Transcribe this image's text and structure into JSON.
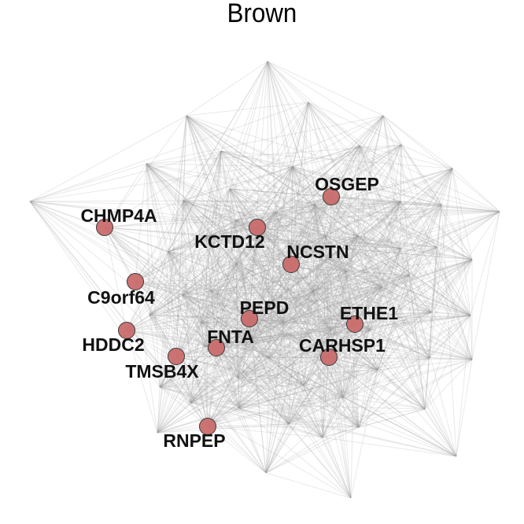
{
  "title": "Brown",
  "colors": {
    "background": "#ffffff",
    "node_fill": "#c96b6b",
    "node_stroke": "#3a3a3a",
    "edge": "#9a9a9a",
    "text": "#111111"
  },
  "hub_genes": [
    {
      "id": "OSGEP",
      "label": "OSGEP"
    },
    {
      "id": "CHMP4A",
      "label": "CHMP4A"
    },
    {
      "id": "KCTD12",
      "label": "KCTD12"
    },
    {
      "id": "NCSTN",
      "label": "NCSTN"
    },
    {
      "id": "C9orf64",
      "label": "C9orf64"
    },
    {
      "id": "PEPD",
      "label": "PEPD"
    },
    {
      "id": "ETHE1",
      "label": "ETHE1"
    },
    {
      "id": "HDDC2",
      "label": "HDDC2"
    },
    {
      "id": "FNTA",
      "label": "FNTA"
    },
    {
      "id": "CARHSP1",
      "label": "CARHSP1"
    },
    {
      "id": "TMSB4X",
      "label": "TMSB4X"
    },
    {
      "id": "RNPEP",
      "label": "RNPEP"
    }
  ]
}
